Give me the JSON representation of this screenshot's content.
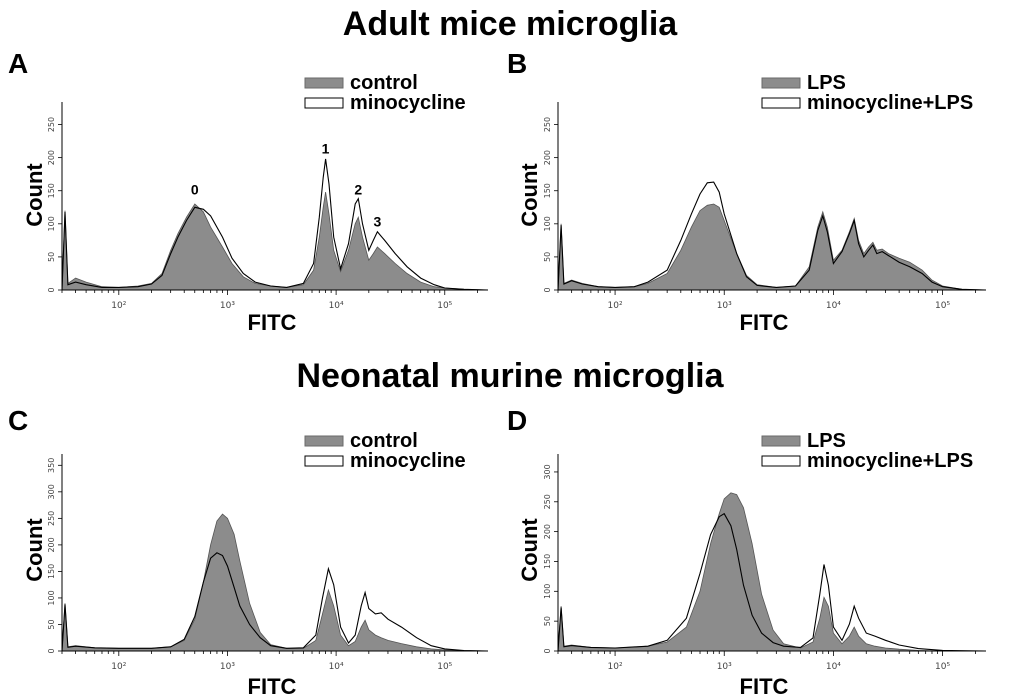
{
  "figure": {
    "section_titles": [
      "Adult mice microglia",
      "Neonatal murine microglia"
    ]
  },
  "chart_data": [
    {
      "panel": "A",
      "type": "area",
      "xlabel": "FITC",
      "ylabel": "Count",
      "x_scale": "log",
      "xlim": [
        30,
        250000
      ],
      "ylim": [
        0,
        275
      ],
      "xticks": [
        100,
        1000,
        10000,
        100000
      ],
      "xtick_labels": [
        "10²",
        "10³",
        "10⁴",
        "10⁵"
      ],
      "yticks": [
        0,
        50,
        100,
        150,
        200,
        250
      ],
      "legend": {
        "position": "top-right",
        "entries": [
          {
            "name": "control",
            "fill": "#8c8c8c"
          },
          {
            "name": "minocycline",
            "fill": "#ffffff"
          }
        ]
      },
      "annotations": [
        {
          "text": "0",
          "x": 500,
          "y": 138
        },
        {
          "text": "1",
          "x": 8000,
          "y": 200
        },
        {
          "text": "2",
          "x": 16000,
          "y": 138
        },
        {
          "text": "3",
          "x": 24000,
          "y": 90
        }
      ],
      "series": [
        {
          "name": "control",
          "fill": "#8c8c8c",
          "x": [
            30,
            32,
            34,
            40,
            50,
            70,
            100,
            150,
            200,
            250,
            300,
            350,
            420,
            500,
            600,
            700,
            900,
            1100,
            1400,
            1800,
            2500,
            3500,
            5000,
            6200,
            7000,
            7600,
            8000,
            8600,
            9500,
            11000,
            13000,
            15000,
            16000,
            17500,
            20000,
            22000,
            24000,
            28000,
            35000,
            45000,
            60000,
            80000,
            100000,
            150000,
            250000
          ],
          "y": [
            0,
            120,
            10,
            18,
            12,
            5,
            4,
            6,
            10,
            25,
            60,
            85,
            110,
            130,
            118,
            95,
            65,
            40,
            20,
            10,
            6,
            4,
            8,
            30,
            80,
            125,
            148,
            115,
            60,
            28,
            60,
            100,
            110,
            80,
            45,
            55,
            65,
            55,
            40,
            25,
            12,
            5,
            3,
            1,
            0
          ]
        },
        {
          "name": "minocycline",
          "fill": "#ffffff",
          "x": [
            30,
            32,
            34,
            40,
            50,
            70,
            100,
            150,
            200,
            250,
            300,
            350,
            420,
            500,
            600,
            700,
            900,
            1100,
            1400,
            1800,
            2500,
            3500,
            5000,
            6200,
            7000,
            7600,
            8000,
            8600,
            9500,
            11000,
            13000,
            15000,
            16000,
            17500,
            20000,
            22000,
            24000,
            28000,
            35000,
            45000,
            60000,
            80000,
            100000,
            150000,
            250000
          ],
          "y": [
            0,
            118,
            8,
            12,
            8,
            4,
            4,
            5,
            9,
            22,
            55,
            80,
            105,
            125,
            122,
            112,
            80,
            48,
            25,
            12,
            6,
            4,
            10,
            40,
            110,
            170,
            198,
            160,
            80,
            32,
            70,
            130,
            138,
            100,
            60,
            75,
            88,
            75,
            55,
            35,
            18,
            8,
            3,
            1,
            0
          ]
        }
      ]
    },
    {
      "panel": "B",
      "type": "area",
      "xlabel": "FITC",
      "ylabel": "Count",
      "x_scale": "log",
      "xlim": [
        30,
        250000
      ],
      "ylim": [
        0,
        275
      ],
      "xticks": [
        100,
        1000,
        10000,
        100000
      ],
      "xtick_labels": [
        "10²",
        "10³",
        "10⁴",
        "10⁵"
      ],
      "yticks": [
        0,
        50,
        100,
        150,
        200,
        250
      ],
      "legend": {
        "position": "top-right",
        "entries": [
          {
            "name": "LPS",
            "fill": "#8c8c8c"
          },
          {
            "name": "minocycline+LPS",
            "fill": "#ffffff"
          }
        ]
      },
      "annotations": [],
      "series": [
        {
          "name": "LPS",
          "fill": "#8c8c8c",
          "x": [
            30,
            32,
            34,
            40,
            50,
            70,
            100,
            150,
            200,
            300,
            400,
            500,
            600,
            700,
            800,
            900,
            1000,
            1300,
            1600,
            2000,
            3000,
            4500,
            6000,
            7200,
            8000,
            8800,
            10000,
            12000,
            14000,
            15500,
            17000,
            19000,
            21000,
            23000,
            25000,
            28000,
            32000,
            40000,
            50000,
            65000,
            80000,
            100000,
            150000,
            250000
          ],
          "y": [
            0,
            100,
            10,
            15,
            10,
            5,
            4,
            5,
            10,
            25,
            60,
            95,
            120,
            128,
            130,
            125,
            105,
            55,
            22,
            8,
            4,
            6,
            35,
            95,
            118,
            95,
            45,
            60,
            88,
            108,
            75,
            55,
            65,
            72,
            60,
            62,
            55,
            48,
            42,
            30,
            15,
            6,
            1,
            0
          ]
        },
        {
          "name": "minocycline+LPS",
          "fill": "#ffffff",
          "x": [
            30,
            32,
            34,
            40,
            50,
            70,
            100,
            150,
            200,
            300,
            400,
            500,
            600,
            700,
            800,
            900,
            1000,
            1300,
            1600,
            2000,
            3000,
            4500,
            6000,
            7200,
            8000,
            8800,
            10000,
            12000,
            14000,
            15500,
            17000,
            19000,
            21000,
            23000,
            25000,
            28000,
            32000,
            40000,
            50000,
            65000,
            80000,
            100000,
            150000,
            250000
          ],
          "y": [
            0,
            98,
            9,
            14,
            9,
            5,
            4,
            5,
            12,
            30,
            75,
            115,
            145,
            162,
            163,
            148,
            115,
            55,
            20,
            7,
            4,
            6,
            30,
            90,
            112,
            88,
            40,
            58,
            85,
            105,
            70,
            50,
            60,
            68,
            55,
            58,
            52,
            42,
            35,
            25,
            12,
            5,
            1,
            0
          ]
        }
      ]
    },
    {
      "panel": "C",
      "type": "area",
      "xlabel": "FITC",
      "ylabel": "Count",
      "x_scale": "log",
      "xlim": [
        30,
        250000
      ],
      "ylim": [
        0,
        360
      ],
      "xticks": [
        100,
        1000,
        10000,
        100000
      ],
      "xtick_labels": [
        "10²",
        "10³",
        "10⁴",
        "10⁵"
      ],
      "yticks": [
        0,
        50,
        100,
        150,
        200,
        250,
        300,
        350
      ],
      "legend": {
        "position": "top-right",
        "entries": [
          {
            "name": "control",
            "fill": "#8c8c8c"
          },
          {
            "name": "minocycline",
            "fill": "#ffffff"
          }
        ]
      },
      "annotations": [],
      "series": [
        {
          "name": "control",
          "fill": "#8c8c8c",
          "x": [
            30,
            32,
            34,
            40,
            60,
            100,
            200,
            300,
            400,
            500,
            600,
            700,
            800,
            900,
            1000,
            1150,
            1300,
            1600,
            2000,
            2500,
            3500,
            5000,
            6500,
            7500,
            8500,
            9500,
            11000,
            13000,
            15000,
            17000,
            18500,
            20000,
            23000,
            26000,
            30000,
            40000,
            55000,
            75000,
            100000,
            150000,
            250000
          ],
          "y": [
            0,
            90,
            8,
            10,
            6,
            5,
            5,
            8,
            20,
            60,
            130,
            200,
            245,
            258,
            250,
            220,
            170,
            90,
            35,
            12,
            5,
            5,
            20,
            70,
            115,
            85,
            30,
            10,
            18,
            45,
            58,
            40,
            30,
            25,
            20,
            14,
            8,
            4,
            2,
            1,
            0
          ]
        },
        {
          "name": "minocycline",
          "fill": "#ffffff",
          "x": [
            30,
            32,
            34,
            40,
            60,
            100,
            200,
            300,
            400,
            500,
            600,
            700,
            800,
            900,
            1000,
            1150,
            1300,
            1600,
            2000,
            2500,
            3500,
            5000,
            6500,
            7500,
            8500,
            9500,
            11000,
            13000,
            15000,
            17000,
            18500,
            20000,
            23000,
            26000,
            30000,
            40000,
            55000,
            75000,
            100000,
            150000,
            250000
          ],
          "y": [
            0,
            88,
            7,
            9,
            6,
            5,
            5,
            8,
            22,
            65,
            130,
            175,
            185,
            180,
            160,
            120,
            85,
            50,
            25,
            10,
            5,
            6,
            30,
            100,
            155,
            125,
            45,
            15,
            30,
            85,
            110,
            80,
            70,
            72,
            60,
            45,
            25,
            10,
            4,
            1,
            0
          ]
        }
      ]
    },
    {
      "panel": "D",
      "type": "area",
      "xlabel": "FITC",
      "ylabel": "Count",
      "x_scale": "log",
      "xlim": [
        30,
        250000
      ],
      "ylim": [
        0,
        320
      ],
      "xticks": [
        100,
        1000,
        10000,
        100000
      ],
      "xtick_labels": [
        "10²",
        "10³",
        "10⁴",
        "10⁵"
      ],
      "yticks": [
        0,
        50,
        100,
        150,
        200,
        250,
        300
      ],
      "legend": {
        "position": "top-right",
        "entries": [
          {
            "name": "LPS",
            "fill": "#8c8c8c"
          },
          {
            "name": "minocycline+LPS",
            "fill": "#ffffff"
          }
        ]
      },
      "annotations": [],
      "series": [
        {
          "name": "LPS",
          "fill": "#8c8c8c",
          "x": [
            30,
            32,
            34,
            40,
            60,
            100,
            200,
            300,
            450,
            600,
            750,
            900,
            1000,
            1150,
            1300,
            1500,
            1800,
            2200,
            2800,
            3500,
            5000,
            6500,
            7500,
            8200,
            9000,
            10000,
            12000,
            14000,
            15500,
            17000,
            20000,
            24000,
            30000,
            40000,
            60000,
            100000,
            250000
          ],
          "y": [
            0,
            75,
            8,
            10,
            6,
            5,
            8,
            15,
            40,
            100,
            180,
            230,
            255,
            265,
            262,
            240,
            180,
            95,
            35,
            12,
            5,
            15,
            55,
            90,
            75,
            30,
            12,
            25,
            40,
            25,
            12,
            8,
            5,
            3,
            1,
            0,
            0
          ]
        },
        {
          "name": "minocycline+LPS",
          "fill": "#ffffff",
          "x": [
            30,
            32,
            34,
            40,
            60,
            100,
            200,
            300,
            450,
            600,
            750,
            900,
            1000,
            1150,
            1300,
            1500,
            1800,
            2200,
            2800,
            3500,
            5000,
            6500,
            7500,
            8200,
            9000,
            10000,
            12000,
            14000,
            15500,
            17000,
            20000,
            24000,
            30000,
            40000,
            60000,
            100000,
            250000
          ],
          "y": [
            0,
            73,
            7,
            9,
            6,
            5,
            8,
            18,
            55,
            130,
            195,
            225,
            230,
            210,
            170,
            110,
            60,
            30,
            14,
            8,
            6,
            22,
            95,
            145,
            110,
            40,
            18,
            45,
            75,
            55,
            30,
            25,
            18,
            10,
            4,
            1,
            0
          ]
        }
      ]
    }
  ]
}
